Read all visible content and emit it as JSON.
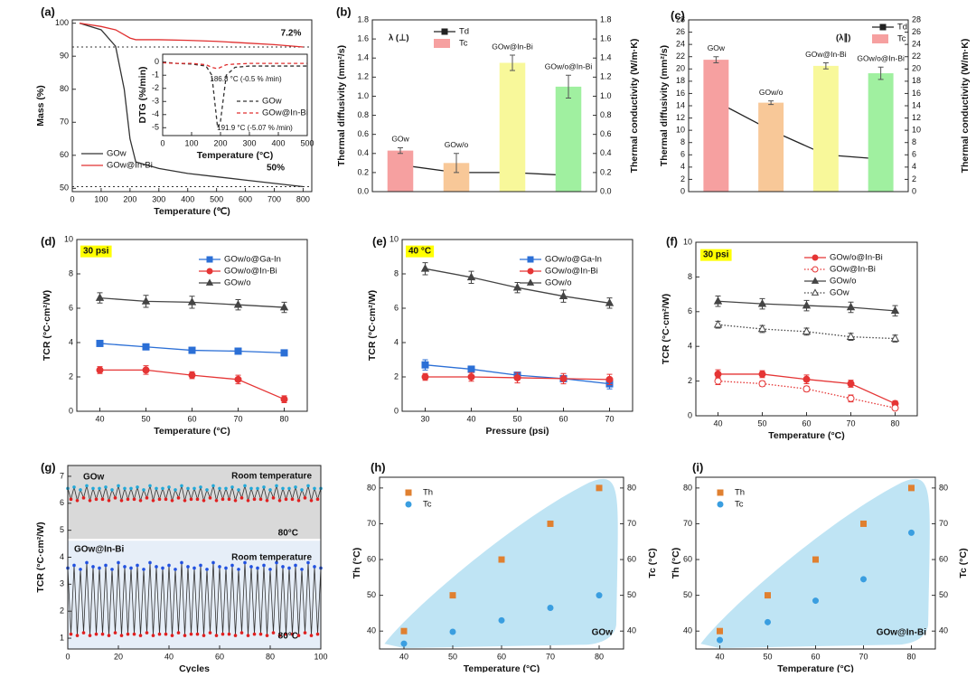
{
  "chart_data": [
    {
      "type": "line",
      "label": "(a)",
      "xlabel": "Temperature (℃)",
      "ylabel": "Mass (%)",
      "xlim": [
        0,
        830
      ],
      "xticks": [
        0,
        100,
        200,
        300,
        400,
        500,
        600,
        700,
        800
      ],
      "ylim": [
        49,
        101
      ],
      "yticks": [
        50,
        60,
        70,
        80,
        90,
        100
      ],
      "reference_lines": true,
      "x": [
        25,
        100,
        150,
        180,
        200,
        220,
        300,
        400,
        500,
        600,
        700,
        800
      ],
      "series": [
        {
          "name": "GOw",
          "color": "#333333",
          "values": [
            100,
            98,
            93,
            80,
            65,
            58,
            56,
            54.5,
            53.5,
            52.5,
            51.5,
            50.5
          ]
        },
        {
          "name": "GOw@In-Bi",
          "color": "#e03030",
          "values": [
            100,
            99,
            98,
            96.5,
            95.5,
            95,
            95,
            94.8,
            94.5,
            94,
            93.5,
            92.8
          ]
        }
      ],
      "annotations": [
        {
          "text": "7.2%",
          "color": "#e03030"
        },
        {
          "text": "50%",
          "color": "#333333"
        }
      ]
    },
    {
      "type": "line",
      "xlabel": "Temperature (°C)",
      "ylabel": "DTG (%/min)",
      "xlim": [
        0,
        500
      ],
      "xticks": [
        0,
        100,
        200,
        300,
        400,
        500
      ],
      "ylim": [
        -5.6,
        0.6
      ],
      "yticks": [
        -5,
        -4,
        -3,
        -2,
        -1,
        0
      ],
      "x": [
        0,
        50,
        100,
        150,
        170,
        190,
        200,
        220,
        250,
        300,
        400,
        500
      ],
      "series": [
        {
          "name": "GOw",
          "color": "#333333",
          "dash": "dashed",
          "values": [
            0,
            -0.1,
            -0.15,
            -0.3,
            -1,
            -5,
            -4.5,
            -1,
            -0.4,
            -0.3,
            -0.3,
            -0.3
          ]
        },
        {
          "name": "GOw@In-Bi",
          "color": "#e03030",
          "dash": "dashed",
          "values": [
            -0.05,
            -0.1,
            -0.1,
            -0.2,
            -0.4,
            -0.5,
            -0.4,
            -0.2,
            -0.15,
            -0.1,
            -0.1,
            -0.1
          ]
        }
      ],
      "annotations": [
        {
          "text": "186.8 °C (-0.5 % /min)",
          "color": "#333333"
        },
        {
          "text": "191.9 °C (-5.07 % /min)",
          "color": "#333333"
        }
      ]
    },
    {
      "type": "bar_line",
      "label": "(b)",
      "ylabel": "Thermal diffusivity (mm²/s)",
      "y2label": "Thermal conductivity (W/m·K)",
      "categories": [
        "GOw",
        "GOw/o",
        "GOw@In-Bi",
        "GOw/o@In-Bi"
      ],
      "ylim": [
        0,
        1.8
      ],
      "yticks": [
        {
          "value": 0,
          "label": "0.0"
        },
        0.2,
        0.4,
        0.6,
        0.8,
        {
          "value": 1,
          "label": "1.0"
        },
        1.2,
        1.4,
        1.6,
        1.8
      ],
      "y2lim": [
        0,
        1.8
      ],
      "y2ticks": [
        {
          "value": 0,
          "label": "0.0"
        },
        0.2,
        0.4,
        0.6,
        0.8,
        {
          "value": 1,
          "label": "1.0"
        },
        1.2,
        1.4,
        1.6,
        1.8
      ],
      "legend_title": "λ (⊥)",
      "series": [
        {
          "name": "Td",
          "kind": "line",
          "color": "#222222",
          "marker": "square",
          "values": [
            0.28,
            0.2,
            0.2,
            0.17
          ],
          "errors": [
            0.04,
            0.02,
            0.03,
            0.08
          ]
        },
        {
          "name": "Tc",
          "kind": "bar",
          "axis": "y2",
          "colors": [
            "#f6a0a0",
            "#f8c898",
            "#f8f89a",
            "#a0f0a0"
          ],
          "values": [
            0.43,
            0.3,
            1.35,
            1.1
          ],
          "errors": [
            0.03,
            0.1,
            0.08,
            0.12
          ]
        }
      ]
    },
    {
      "type": "bar_line",
      "label": "(c)",
      "ylabel": "Thermal diffusivity (mm²/s)",
      "y2label": "Thermal conductivity (W/m·K)",
      "categories": [
        "GOw",
        "GOw/o",
        "GOw@In-Bi",
        "GOw/o@In-Bi"
      ],
      "ylim": [
        0,
        28
      ],
      "yticks": [
        0,
        2,
        4,
        6,
        8,
        10,
        12,
        14,
        16,
        18,
        20,
        22,
        24,
        26,
        28
      ],
      "y2lim": [
        0,
        28
      ],
      "y2ticks": [
        0,
        2,
        4,
        6,
        8,
        10,
        12,
        14,
        16,
        18,
        20,
        22,
        24,
        26,
        28
      ],
      "legend_title": "(λ∥)",
      "series": [
        {
          "name": "Td",
          "kind": "line",
          "color": "#222222",
          "marker": "square",
          "values": [
            14.7,
            10,
            6,
            5.3
          ],
          "errors": [
            0.2,
            0.5,
            0.6,
            1.2
          ]
        },
        {
          "name": "Tc",
          "kind": "bar",
          "axis": "y2",
          "colors": [
            "#f6a0a0",
            "#f8c898",
            "#f8f89a",
            "#a0f0a0"
          ],
          "values": [
            21.5,
            14.5,
            20.5,
            19.3
          ],
          "errors": [
            0.5,
            0.3,
            0.5,
            1
          ]
        }
      ]
    },
    {
      "type": "line",
      "label": "(d)",
      "xlabel": "Temperature (°C)",
      "ylabel": "TCR (°C·cm²/W)",
      "xlim": [
        35,
        85
      ],
      "xticks": [
        40,
        50,
        60,
        70,
        80
      ],
      "ylim": [
        0,
        10
      ],
      "yticks": [
        0,
        2,
        4,
        6,
        8,
        10
      ],
      "x": [
        40,
        50,
        60,
        70,
        80
      ],
      "series": [
        {
          "name": "GOw/o@Ga-In",
          "color": "#2b6fd6",
          "marker": "square",
          "values": [
            3.95,
            3.75,
            3.55,
            3.5,
            3.4
          ],
          "errors": [
            0.15,
            0.12,
            0.12,
            0.1,
            0.1
          ]
        },
        {
          "name": "GOw/o@In-Bi",
          "color": "#e53535",
          "marker": "circle",
          "values": [
            2.4,
            2.4,
            2.1,
            1.85,
            0.7
          ],
          "errors": [
            0.2,
            0.25,
            0.2,
            0.25,
            0.2
          ]
        },
        {
          "name": "GOw/o",
          "color": "#444444",
          "marker": "triangle",
          "values": [
            6.6,
            6.4,
            6.35,
            6.2,
            6.05
          ],
          "errors": [
            0.3,
            0.35,
            0.35,
            0.3,
            0.3
          ]
        }
      ],
      "annotations": [
        {
          "text": "30 psi",
          "color": "#000000",
          "background": "#ffff00"
        }
      ]
    },
    {
      "type": "line",
      "label": "(e)",
      "xlabel": "Pressure (psi)",
      "ylabel": "TCR (°C·cm²/W)",
      "xlim": [
        25,
        75
      ],
      "xticks": [
        30,
        40,
        50,
        60,
        70
      ],
      "ylim": [
        0,
        10
      ],
      "yticks": [
        0,
        2,
        4,
        6,
        8,
        10
      ],
      "x": [
        30,
        40,
        50,
        60,
        70
      ],
      "series": [
        {
          "name": "GOw/o@Ga-In",
          "color": "#2b6fd6",
          "marker": "square",
          "values": [
            2.7,
            2.45,
            2.1,
            1.9,
            1.6
          ],
          "errors": [
            0.3,
            0.15,
            0.1,
            0.1,
            0.3
          ]
        },
        {
          "name": "GOw/o@In-Bi",
          "color": "#e53535",
          "marker": "circle",
          "values": [
            2,
            2,
            1.95,
            1.9,
            1.85
          ],
          "errors": [
            0.2,
            0.25,
            0.3,
            0.3,
            0.3
          ]
        },
        {
          "name": "GOw/o",
          "color": "#444444",
          "marker": "triangle",
          "values": [
            8.3,
            7.8,
            7.2,
            6.7,
            6.3
          ],
          "errors": [
            0.35,
            0.35,
            0.3,
            0.35,
            0.3
          ]
        }
      ],
      "annotations": [
        {
          "text": "40 °C",
          "color": "#000000",
          "background": "#ffff00"
        }
      ]
    },
    {
      "type": "line",
      "label": "(f)",
      "xlabel": "Temperature (°C)",
      "ylabel": "TCR (°C·cm²/W)",
      "xlim": [
        35,
        85
      ],
      "xticks": [
        40,
        50,
        60,
        70,
        80
      ],
      "ylim": [
        0,
        10
      ],
      "yticks": [
        0,
        2,
        4,
        6,
        8,
        10
      ],
      "x": [
        40,
        50,
        60,
        70,
        80
      ],
      "series": [
        {
          "name": "GOw/o@In-Bi",
          "color": "#e53535",
          "marker": "circle",
          "values": [
            2.4,
            2.4,
            2.1,
            1.85,
            0.7
          ],
          "errors": [
            0.25,
            0.2,
            0.25,
            0.2,
            0.15
          ]
        },
        {
          "name": "GOw@In-Bi",
          "color": "#e53535",
          "marker": "circle",
          "open": true,
          "dash": "dotted",
          "values": [
            2,
            1.85,
            1.55,
            1,
            0.45
          ],
          "errors": [
            0.2,
            0.15,
            0.15,
            0.2,
            0.1
          ]
        },
        {
          "name": "GOw/o",
          "color": "#444444",
          "marker": "triangle",
          "values": [
            6.6,
            6.45,
            6.35,
            6.25,
            6.05
          ],
          "errors": [
            0.3,
            0.3,
            0.3,
            0.3,
            0.3
          ]
        },
        {
          "name": "GOw",
          "color": "#444444",
          "marker": "triangle",
          "open": true,
          "dash": "dotted",
          "values": [
            5.25,
            5,
            4.85,
            4.55,
            4.45
          ],
          "errors": [
            0.2,
            0.2,
            0.2,
            0.2,
            0.2
          ]
        }
      ],
      "annotations": [
        {
          "text": "30 psi",
          "color": "#000000",
          "background": "#ffff00"
        }
      ]
    },
    {
      "type": "line",
      "label": "(g)",
      "xlabel": "Cycles",
      "ylabel": "TCR (°C·cm²/W)",
      "xlim": [
        0,
        100
      ],
      "xticks": [
        0,
        20,
        40,
        60,
        80,
        100
      ],
      "ylim": [
        0.6,
        7.4
      ],
      "yticks": [
        1,
        2,
        3,
        4,
        5,
        6,
        7
      ],
      "x": [
        0,
        1.25,
        2.5,
        3.75,
        5,
        6.25,
        7.5,
        8.75,
        10,
        11.25,
        12.5,
        13.75,
        15,
        16.25,
        17.5,
        18.75,
        20,
        21.25,
        22.5,
        23.75,
        25,
        26.25,
        27.5,
        28.75,
        30,
        31.25,
        32.5,
        33.75,
        35,
        36.25,
        37.5,
        38.75,
        40,
        41.25,
        42.5,
        43.75,
        45,
        46.25,
        47.5,
        48.75,
        50,
        51.25,
        52.5,
        53.75,
        55,
        56.25,
        57.5,
        58.75,
        60,
        61.25,
        62.5,
        63.75,
        65,
        66.25,
        67.5,
        68.75,
        70,
        71.25,
        72.5,
        73.75,
        75,
        76.25,
        77.5,
        78.75,
        80,
        81.25,
        82.5,
        83.75,
        85,
        86.25,
        87.5,
        88.75,
        90,
        91.25,
        92.5,
        93.75,
        95,
        96.25,
        97.5,
        98.75,
        100
      ],
      "series": [
        {
          "color": "#333333",
          "peak_color": "#22a8d8",
          "trough_color": "#e02020",
          "values": [
            6.55,
            6.15,
            6.6,
            6.1,
            6.5,
            6.2,
            6.65,
            6.1,
            6.55,
            6.15,
            6.55,
            6.15,
            6.6,
            6.1,
            6.5,
            6.2,
            6.65,
            6.1,
            6.55,
            6.15,
            6.55,
            6.15,
            6.6,
            6.1,
            6.5,
            6.2,
            6.65,
            6.1,
            6.55,
            6.15,
            6.55,
            6.15,
            6.6,
            6.1,
            6.5,
            6.2,
            6.65,
            6.1,
            6.55,
            6.15,
            6.55,
            6.15,
            6.6,
            6.1,
            6.5,
            6.2,
            6.65,
            6.1,
            6.55,
            6.15,
            6.55,
            6.15,
            6.6,
            6.1,
            6.5,
            6.2,
            6.65,
            6.1,
            6.55,
            6.15,
            6.55,
            6.15,
            6.6,
            6.1,
            6.5,
            6.2,
            6.65,
            6.1,
            6.55,
            6.15,
            6.55,
            6.15,
            6.6,
            6.1,
            6.5,
            6.2,
            6.65,
            6.1,
            6.55,
            6.15,
            6.55
          ]
        },
        {
          "color": "#333333",
          "peak_color": "#2050e0",
          "trough_color": "#e02020",
          "values": [
            3.6,
            1.15,
            3.7,
            1.1,
            3.55,
            1.2,
            3.8,
            1.1,
            3.65,
            1.15,
            3.6,
            1.15,
            3.7,
            1.1,
            3.55,
            1.2,
            3.8,
            1.1,
            3.65,
            1.15,
            3.6,
            1.15,
            3.7,
            1.1,
            3.55,
            1.2,
            3.8,
            1.1,
            3.65,
            1.15,
            3.6,
            1.15,
            3.7,
            1.1,
            3.55,
            1.2,
            3.8,
            1.1,
            3.65,
            1.15,
            3.6,
            1.15,
            3.7,
            1.1,
            3.55,
            1.2,
            3.8,
            1.1,
            3.65,
            1.15,
            3.6,
            1.15,
            3.7,
            1.1,
            3.55,
            1.2,
            3.8,
            1.1,
            3.65,
            1.15,
            3.6,
            1.15,
            3.7,
            1.1,
            3.55,
            1.2,
            3.8,
            1.1,
            3.65,
            1.15,
            3.6,
            1.15,
            3.7,
            1.1,
            3.55,
            1.2,
            3.8,
            1.1,
            3.65,
            1.15,
            3.6
          ]
        }
      ],
      "annotations": [
        {
          "text": "GOw",
          "color": "#111111"
        },
        {
          "text": "Room temperature",
          "color": "#111111"
        },
        {
          "text": "80°C",
          "color": "#111111"
        },
        {
          "text": "GOw@In-Bi",
          "color": "#2050e0"
        },
        {
          "text": "Room temperature",
          "color": "#111111"
        },
        {
          "text": "80°C",
          "color": "#111111"
        }
      ]
    },
    {
      "type": "scatter",
      "label": "(h)",
      "xlabel": "Temperature (°C)",
      "ylabel": "Th (°C)",
      "y2label": "Tc (°C)",
      "ylabel_color": "#e08030",
      "y2label_color": "#3a9ee0",
      "xlim": [
        35,
        85
      ],
      "xticks": [
        40,
        50,
        60,
        70,
        80
      ],
      "ylim": [
        35,
        83
      ],
      "yticks": [
        40,
        50,
        60,
        70,
        80
      ],
      "y2lim": [
        35,
        83
      ],
      "y2ticks": [
        40,
        50,
        60,
        70,
        80
      ],
      "x": [
        40,
        50,
        60,
        70,
        80
      ],
      "series": [
        {
          "name": "Th",
          "color": "#e08030",
          "marker": "square",
          "values": [
            40,
            50,
            60,
            70,
            80
          ]
        },
        {
          "name": "Tc",
          "color": "#3a9ee0",
          "marker": "circle",
          "axis": "y2",
          "values": [
            36.5,
            39.8,
            43,
            46.5,
            50
          ]
        }
      ],
      "annotations": [
        {
          "text": "GOw",
          "color": "#111111"
        }
      ]
    },
    {
      "type": "scatter",
      "label": "(i)",
      "xlabel": "Temperature (°C)",
      "ylabel": "Th (°C)",
      "y2label": "Tc (°C)",
      "ylabel_color": "#e08030",
      "y2label_color": "#3a9ee0",
      "xlim": [
        35,
        85
      ],
      "xticks": [
        40,
        50,
        60,
        70,
        80
      ],
      "ylim": [
        35,
        83
      ],
      "yticks": [
        40,
        50,
        60,
        70,
        80
      ],
      "y2lim": [
        35,
        83
      ],
      "y2ticks": [
        40,
        50,
        60,
        70,
        80
      ],
      "x": [
        40,
        50,
        60,
        70,
        80
      ],
      "series": [
        {
          "name": "Th",
          "color": "#e08030",
          "marker": "square",
          "values": [
            40,
            50,
            60,
            70,
            80
          ]
        },
        {
          "name": "Tc",
          "color": "#3a9ee0",
          "marker": "circle",
          "axis": "y2",
          "values": [
            37.5,
            42.5,
            48.5,
            54.5,
            67.5
          ]
        }
      ],
      "annotations": [
        {
          "text": "GOw@In-Bi",
          "color": "#2050e0"
        }
      ]
    }
  ]
}
